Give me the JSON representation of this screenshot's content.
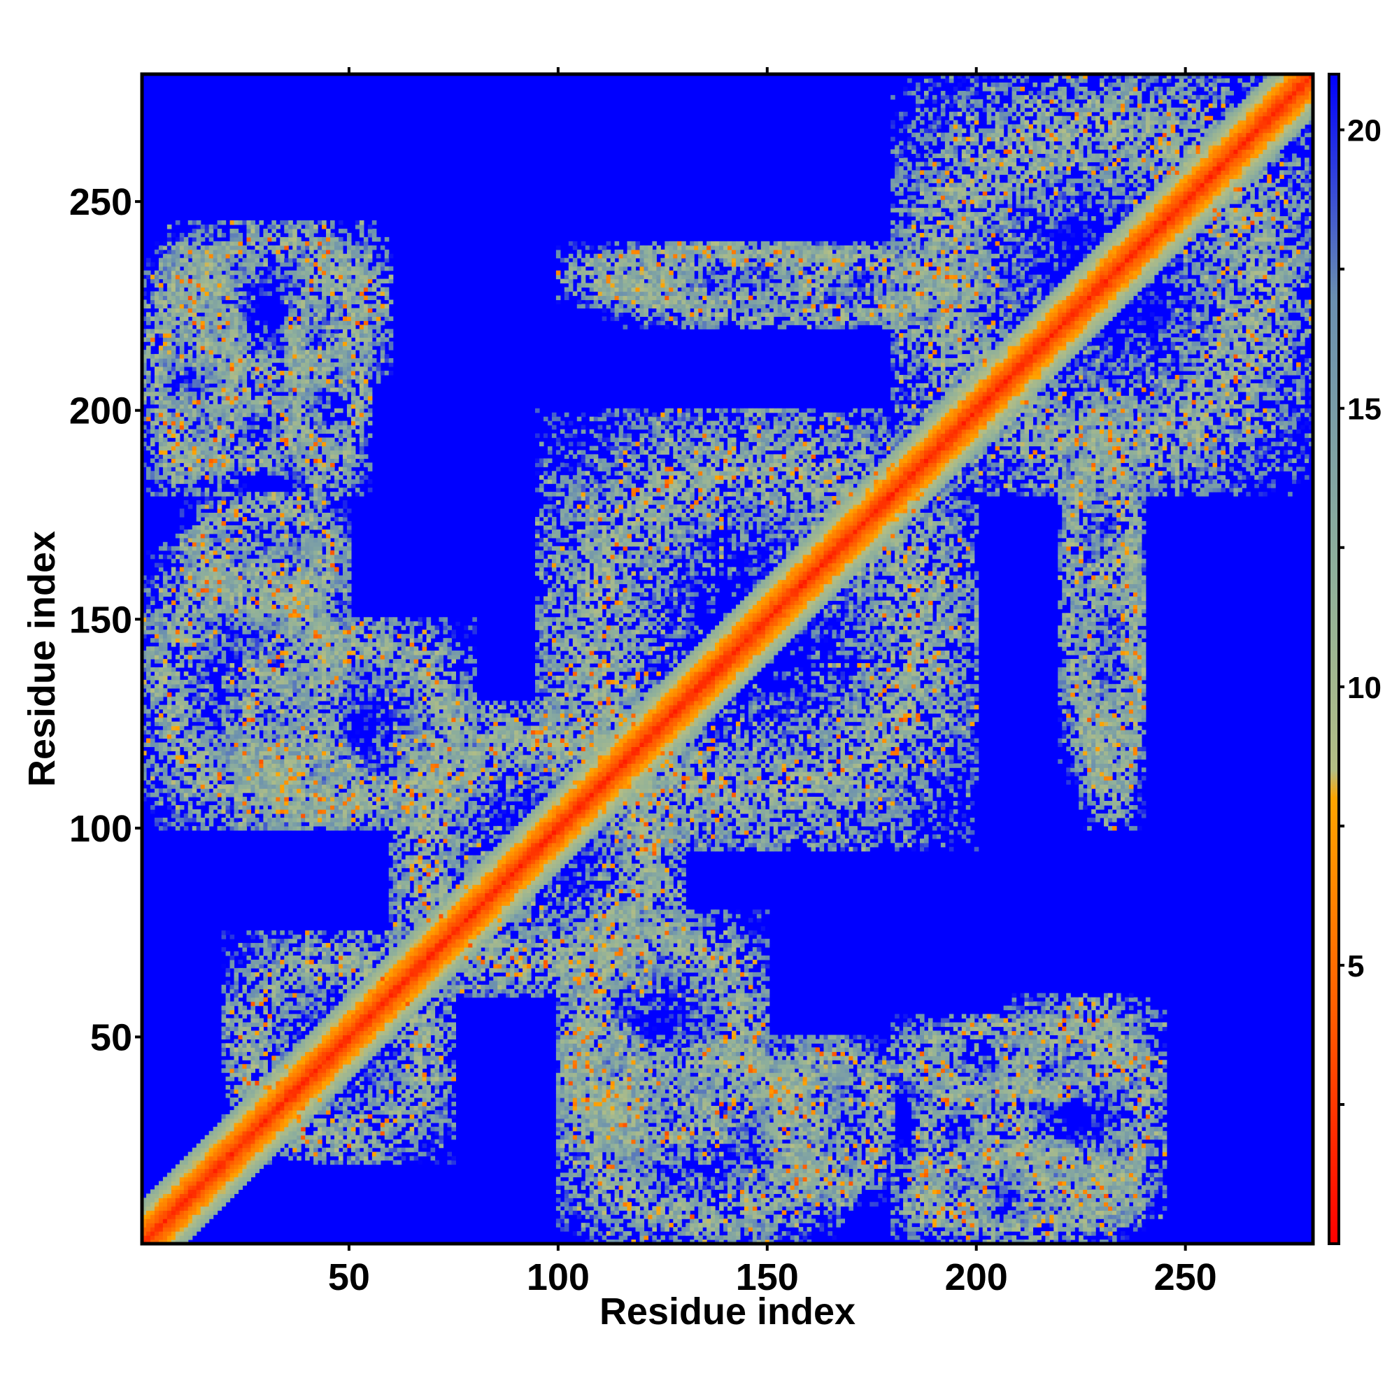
{
  "chart_data": {
    "type": "heatmap",
    "title": "",
    "xlabel": "Residue index",
    "ylabel": "Residue index",
    "xlim": [
      1,
      280
    ],
    "ylim": [
      1,
      280
    ],
    "x_ticks": [
      50,
      100,
      150,
      200,
      250
    ],
    "y_ticks": [
      50,
      100,
      150,
      200,
      250
    ],
    "colorbar": {
      "range": [
        0,
        21
      ],
      "ticks": [
        5,
        10,
        15,
        20
      ],
      "stops": [
        {
          "value": 0,
          "color": "#ff0000"
        },
        {
          "value": 4,
          "color": "#ff5a00"
        },
        {
          "value": 8,
          "color": "#ffa500"
        },
        {
          "value": 8.5,
          "color": "#b4be84"
        },
        {
          "value": 12,
          "color": "#8fb09b"
        },
        {
          "value": 17,
          "color": "#6a8fb0"
        },
        {
          "value": 21,
          "color": "#0000ff"
        }
      ]
    },
    "background_color": "#0000ff",
    "diagonal_color": "#ff0000",
    "contact_regions": [
      {
        "x": [
          1,
          280
        ],
        "y": [
          1,
          280
        ],
        "band": "diagonal"
      },
      {
        "x": [
          20,
          75
        ],
        "y": [
          20,
          75
        ],
        "note": "block"
      },
      {
        "x": [
          60,
          130
        ],
        "y": [
          60,
          130
        ],
        "note": "block"
      },
      {
        "x": [
          95,
          200
        ],
        "y": [
          95,
          200
        ],
        "note": "block"
      },
      {
        "x": [
          180,
          280
        ],
        "y": [
          180,
          280
        ],
        "note": "block"
      },
      {
        "x": [
          1,
          25
        ],
        "y": [
          180,
          240
        ],
        "note": "off-diagonal"
      },
      {
        "x": [
          35,
          55
        ],
        "y": [
          180,
          240
        ],
        "note": "off-diagonal"
      },
      {
        "x": [
          1,
          50
        ],
        "y": [
          100,
          170
        ],
        "note": "off-diagonal"
      },
      {
        "x": [
          30,
          55
        ],
        "y": [
          100,
          120
        ],
        "note": "off-diagonal"
      },
      {
        "x": [
          100,
          150
        ],
        "y": [
          20,
          80
        ],
        "note": "off-diagonal"
      },
      {
        "x": [
          150,
          180
        ],
        "y": [
          10,
          50
        ],
        "note": "off-diagonal"
      },
      {
        "x": [
          185,
          205
        ],
        "y": [
          5,
          40
        ],
        "note": "off-diagonal"
      },
      {
        "x": [
          205,
          245
        ],
        "y": [
          5,
          60
        ],
        "note": "off-diagonal"
      },
      {
        "x": [
          225,
          240
        ],
        "y": [
          100,
          170
        ],
        "note": "off-diagonal"
      },
      {
        "x": [
          110,
          200
        ],
        "y": [
          220,
          240
        ],
        "note": "off-diagonal"
      }
    ]
  }
}
